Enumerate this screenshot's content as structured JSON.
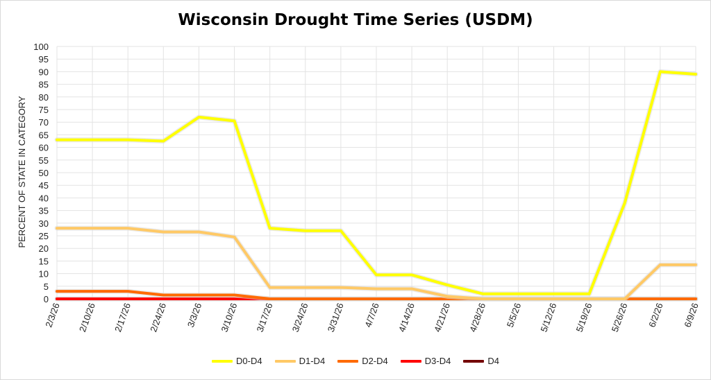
{
  "chart_data": {
    "type": "line",
    "title": "Wisconsin Drought Time Series (USDM)",
    "xlabel": "",
    "ylabel": "PERCENT OF STATE IN CATEGORY",
    "ylim": [
      0,
      100
    ],
    "yticks": [
      0,
      5,
      10,
      15,
      20,
      25,
      30,
      35,
      40,
      45,
      50,
      55,
      60,
      65,
      70,
      75,
      80,
      85,
      90,
      95,
      100
    ],
    "categories": [
      "2/3/26",
      "2/10/26",
      "2/17/26",
      "2/24/26",
      "3/3/26",
      "3/10/26",
      "3/17/26",
      "3/24/26",
      "3/31/26",
      "4/7/26",
      "4/14/26",
      "4/21/26",
      "4/28/26",
      "5/5/26",
      "5/12/26",
      "5/19/26",
      "5/26/26",
      "6/2/26",
      "6/9/26"
    ],
    "grid": true,
    "legend_position": "bottom",
    "series": [
      {
        "name": "D0-D4",
        "color": "#ffff00",
        "values": [
          63,
          63,
          63,
          62.5,
          72,
          70.5,
          28,
          27,
          27,
          9.5,
          9.5,
          5.5,
          2,
          2,
          2,
          2,
          38,
          90,
          89
        ]
      },
      {
        "name": "D1-D4",
        "color": "#ffc966",
        "values": [
          28,
          28,
          28,
          26.5,
          26.5,
          24.5,
          4.5,
          4.5,
          4.5,
          4,
          4,
          1,
          0,
          0,
          0,
          0,
          0,
          13.5,
          13.5
        ]
      },
      {
        "name": "D2-D4",
        "color": "#ff6a00",
        "values": [
          3,
          3,
          3,
          1.5,
          1.5,
          1.5,
          0,
          0,
          0,
          0,
          0,
          0,
          0,
          0,
          0,
          0,
          0,
          0,
          0
        ]
      },
      {
        "name": "D3-D4",
        "color": "#ff0000",
        "values": [
          0,
          0,
          0,
          0,
          0,
          0,
          0,
          0,
          0,
          0,
          0,
          0,
          0,
          0,
          0,
          0,
          0,
          0,
          0
        ]
      },
      {
        "name": "D4",
        "color": "#730000",
        "values": [
          0,
          0,
          0,
          0,
          0,
          0,
          0,
          0,
          0,
          0,
          0,
          0,
          0,
          0,
          0,
          0,
          0,
          0,
          0
        ]
      }
    ]
  }
}
